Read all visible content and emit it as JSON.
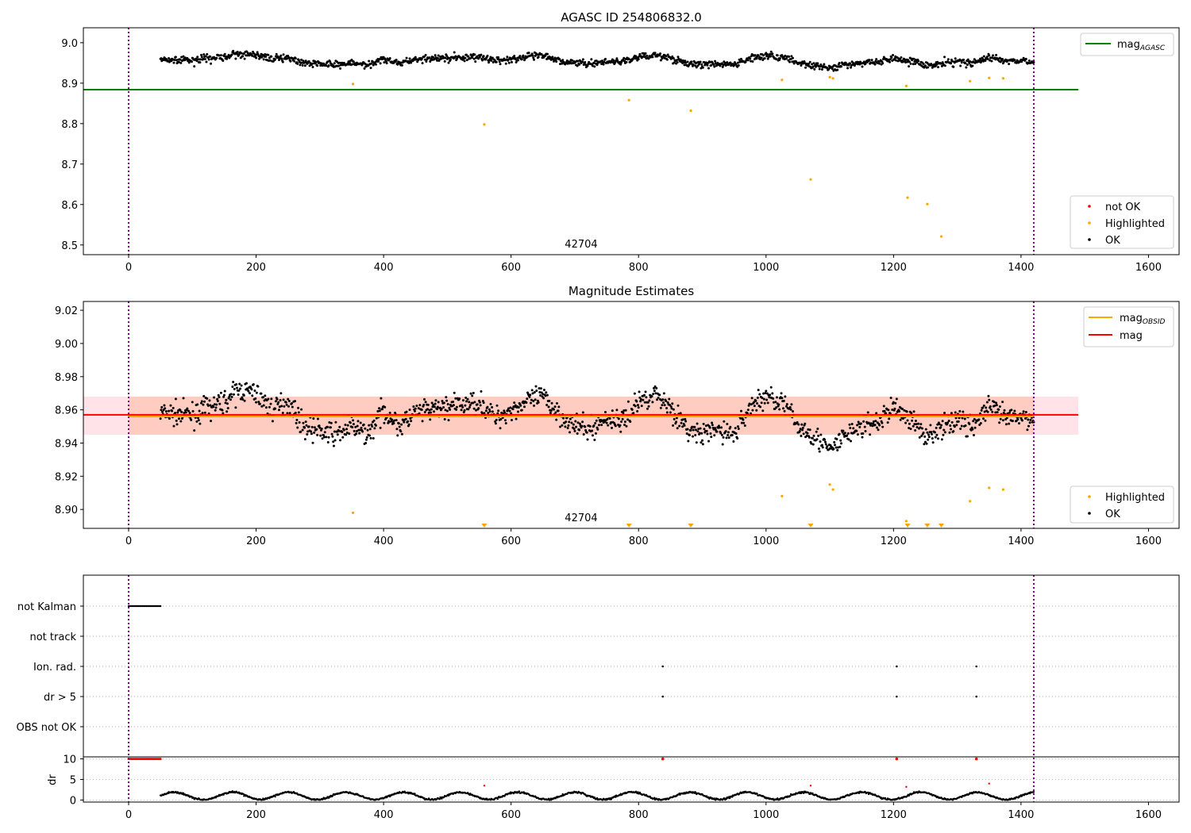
{
  "chart_data": [
    {
      "type": "scatter",
      "title": "AGASC ID 254806832.0",
      "xlim": [
        -71,
        1648
      ],
      "ylim": [
        8.476,
        9.037
      ],
      "xticks": [
        0,
        200,
        400,
        600,
        800,
        1000,
        1200,
        1400,
        1600
      ],
      "yticks": [
        8.5,
        8.6,
        8.7,
        8.8,
        8.9,
        9.0
      ],
      "obsid_label": "42704",
      "obsid_label_x": 710,
      "vlines": [
        0,
        1420
      ],
      "mag_agasc": 8.884,
      "mag_agasc_range": [
        -71,
        1490
      ],
      "legend_top": {
        "entry": "mag",
        "subscript": "AGASC",
        "color": "#008000"
      },
      "legend_bottom": [
        {
          "label": "not OK",
          "color": "#ff0000"
        },
        {
          "label": "Highlighted",
          "color": "#ffa500"
        },
        {
          "label": "OK",
          "color": "#000000"
        }
      ],
      "highlighted": [
        [
          352,
          8.898
        ],
        [
          558,
          8.798
        ],
        [
          785,
          8.858
        ],
        [
          882,
          8.832
        ],
        [
          1025,
          8.908
        ],
        [
          1070,
          8.662
        ],
        [
          1100,
          8.915
        ],
        [
          1105,
          8.912
        ],
        [
          1220,
          8.893
        ],
        [
          1222,
          8.617
        ],
        [
          1253,
          8.601
        ],
        [
          1275,
          8.521
        ],
        [
          1320,
          8.905
        ],
        [
          1350,
          8.913
        ],
        [
          1372,
          8.912
        ]
      ]
    },
    {
      "type": "scatter",
      "title": "Magnitude Estimates",
      "xlim": [
        -71,
        1648
      ],
      "ylim": [
        8.8886,
        9.0253
      ],
      "xticks": [
        0,
        200,
        400,
        600,
        800,
        1000,
        1200,
        1400,
        1600
      ],
      "yticks": [
        8.9,
        8.92,
        8.94,
        8.96,
        8.98,
        9.0,
        9.02
      ],
      "ytick_labels": [
        "8.90",
        "8.92",
        "8.94",
        "8.96",
        "8.98",
        "9.00",
        "9.02"
      ],
      "obsid_label": "42704",
      "obsid_label_x": 710,
      "mag": 8.957,
      "mag_band": [
        8.945,
        8.968
      ],
      "mag_obsid": 8.956,
      "legend_top": [
        {
          "label": "mag",
          "subscript": "OBSID",
          "color": "#ffa500"
        },
        {
          "label": "mag",
          "subscript": "",
          "color": "#ff0000"
        }
      ],
      "legend_bottom": [
        {
          "label": "Highlighted",
          "color": "#ffa500"
        },
        {
          "label": "OK",
          "color": "#000000"
        }
      ],
      "out_of_range_x": [
        558,
        785,
        882,
        1070,
        1222,
        1253,
        1275
      ],
      "trend": [
        [
          50,
          8.958
        ],
        [
          100,
          8.957
        ],
        [
          150,
          8.965
        ],
        [
          175,
          8.972
        ],
        [
          200,
          8.97
        ],
        [
          225,
          8.96
        ],
        [
          250,
          8.965
        ],
        [
          275,
          8.95
        ],
        [
          300,
          8.947
        ],
        [
          325,
          8.945
        ],
        [
          350,
          8.95
        ],
        [
          375,
          8.945
        ],
        [
          400,
          8.96
        ],
        [
          425,
          8.95
        ],
        [
          450,
          8.958
        ],
        [
          475,
          8.96
        ],
        [
          500,
          8.962
        ],
        [
          525,
          8.963
        ],
        [
          550,
          8.965
        ],
        [
          575,
          8.955
        ],
        [
          600,
          8.96
        ],
        [
          625,
          8.965
        ],
        [
          650,
          8.968
        ],
        [
          675,
          8.958
        ],
        [
          700,
          8.95
        ],
        [
          725,
          8.948
        ],
        [
          750,
          8.955
        ],
        [
          775,
          8.953
        ],
        [
          800,
          8.965
        ],
        [
          825,
          8.97
        ],
        [
          850,
          8.962
        ],
        [
          875,
          8.948
        ],
        [
          900,
          8.945
        ],
        [
          925,
          8.948
        ],
        [
          950,
          8.945
        ],
        [
          975,
          8.962
        ],
        [
          1000,
          8.968
        ],
        [
          1025,
          8.965
        ],
        [
          1050,
          8.95
        ],
        [
          1075,
          8.945
        ],
        [
          1100,
          8.935
        ],
        [
          1125,
          8.945
        ],
        [
          1150,
          8.95
        ],
        [
          1175,
          8.952
        ],
        [
          1200,
          8.962
        ],
        [
          1225,
          8.955
        ],
        [
          1250,
          8.945
        ],
        [
          1275,
          8.948
        ],
        [
          1300,
          8.955
        ],
        [
          1325,
          8.95
        ],
        [
          1350,
          8.962
        ],
        [
          1375,
          8.955
        ],
        [
          1400,
          8.955
        ],
        [
          1420,
          8.955
        ]
      ],
      "scatter_sigma": 0.008
    },
    {
      "type": "scatter",
      "title": "",
      "flags": [
        "not Kalman",
        "not track",
        "Ion. rad.",
        "dr > 5",
        "OBS not OK"
      ],
      "flag_points": {
        "not Kalman": [
          [
            0,
            50
          ]
        ],
        "Ion. rad.": [
          838,
          1205,
          1330
        ],
        "dr > 5": [
          838,
          1205,
          1330
        ]
      },
      "dr_label": "dr",
      "dr_yticks": [
        0,
        5,
        10
      ],
      "dr_ylim": [
        -0.5,
        10.5
      ],
      "dr_red_at_10": {
        "range": [
          0,
          50
        ],
        "points": [
          838,
          1205,
          1330
        ]
      },
      "dr_red_points": [
        [
          558,
          3.5
        ],
        [
          1070,
          3.5
        ],
        [
          1220,
          3.2
        ],
        [
          1350,
          4.0
        ]
      ],
      "xticks": [
        0,
        200,
        400,
        600,
        800,
        1000,
        1200,
        1400,
        1600
      ]
    }
  ]
}
